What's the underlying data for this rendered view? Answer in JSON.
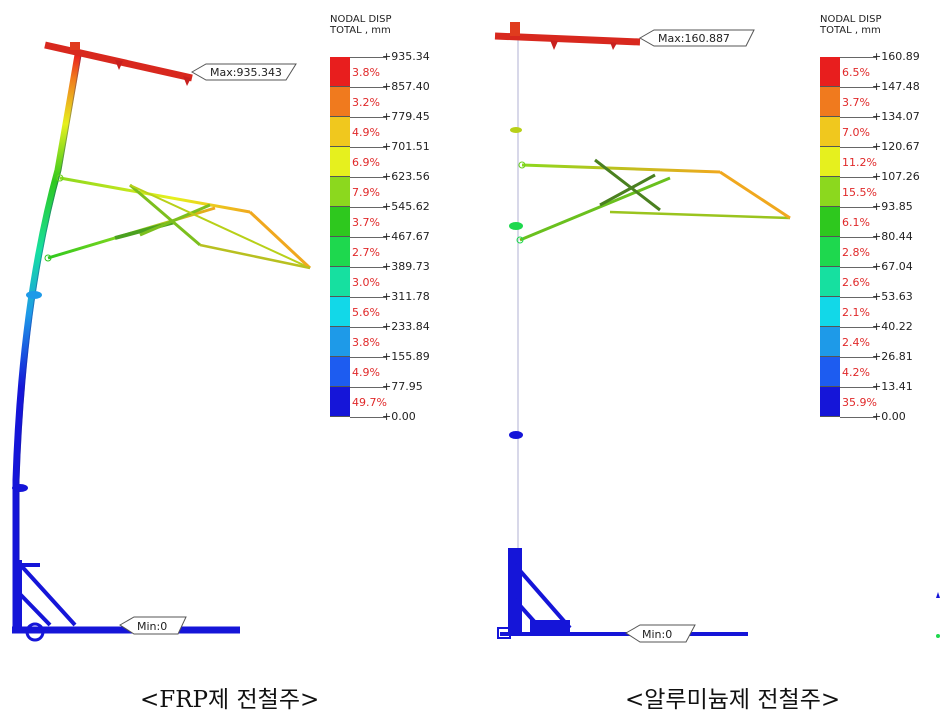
{
  "colors": {
    "scale": [
      "#1515d8",
      "#1d5cf0",
      "#1e9ae8",
      "#12d8e8",
      "#16e0a0",
      "#1ed84e",
      "#2ec81e",
      "#8cd81e",
      "#e6f01e",
      "#f0c81e",
      "#f07a1e",
      "#e81e1e"
    ]
  },
  "left": {
    "legend_title": "NODAL DISP\nTOTAL , mm",
    "ticks": [
      "+935.34",
      "+857.40",
      "+779.45",
      "+701.51",
      "+623.56",
      "+545.62",
      "+467.67",
      "+389.73",
      "+311.78",
      "+233.84",
      "+155.89",
      "+77.95",
      "+0.00"
    ],
    "percents": [
      "3.8%",
      "3.2%",
      "4.9%",
      "6.9%",
      "7.9%",
      "3.7%",
      "2.7%",
      "3.0%",
      "5.6%",
      "3.8%",
      "4.9%",
      "49.7%"
    ],
    "max_label": "Max:935.343",
    "min_label": "Min:0",
    "caption": "<FRP제 전철주>"
  },
  "right": {
    "legend_title": "NODAL DISP\nTOTAL , mm",
    "ticks": [
      "+160.89",
      "+147.48",
      "+134.07",
      "+120.67",
      "+107.26",
      "+93.85",
      "+80.44",
      "+67.04",
      "+53.63",
      "+40.22",
      "+26.81",
      "+13.41",
      "+0.00"
    ],
    "percents": [
      "6.5%",
      "3.7%",
      "7.0%",
      "11.2%",
      "15.5%",
      "6.1%",
      "2.8%",
      "2.6%",
      "2.1%",
      "2.4%",
      "4.2%",
      "35.9%"
    ],
    "max_label": "Max:160.887",
    "min_label": "Min:0",
    "caption": "<알루미늄제 전철주>"
  }
}
